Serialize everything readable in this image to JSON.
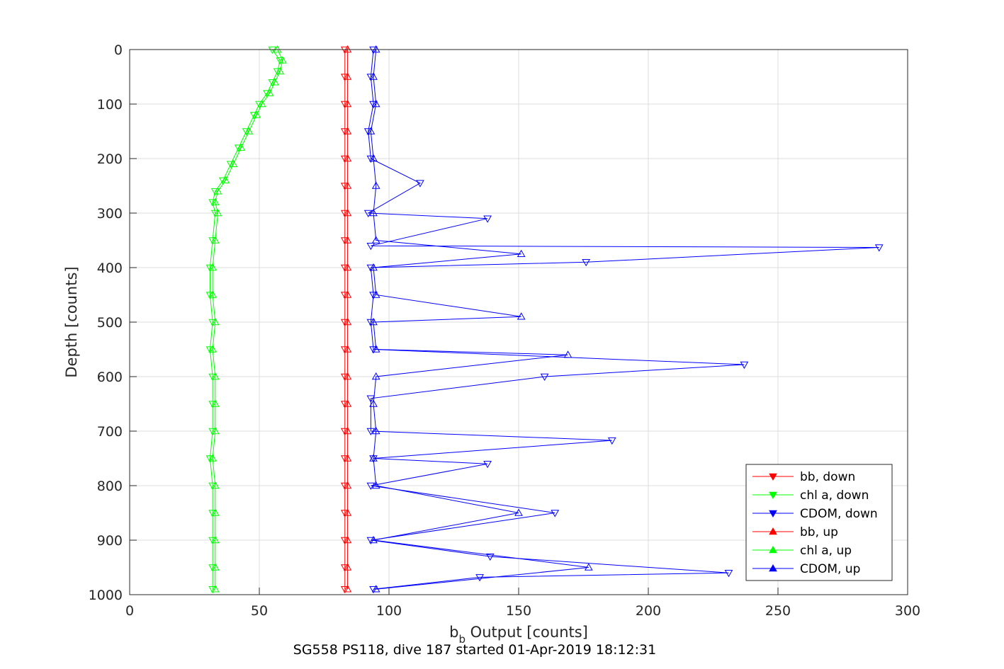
{
  "chart_data": {
    "type": "line",
    "xlabel_main": "b",
    "xlabel_sub": "b",
    "xlabel_rest": " Output [counts]",
    "ylabel": "Depth [counts]",
    "caption": "SG558 PS118, dive 187 started 01-Apr-2019 18:12:31",
    "xlim": [
      0,
      300
    ],
    "ylim": [
      0,
      1000
    ],
    "y_reversed": true,
    "grid": true,
    "x_ticks": [
      0,
      50,
      100,
      150,
      200,
      250,
      300
    ],
    "y_ticks": [
      0,
      100,
      200,
      300,
      400,
      500,
      600,
      700,
      800,
      900,
      1000
    ],
    "legend_position": "bottom-right",
    "legend": [
      {
        "label": "bb, down",
        "color": "#ff0000",
        "marker": "down-triangle"
      },
      {
        "label": "chl a, down",
        "color": "#00ff00",
        "marker": "down-triangle"
      },
      {
        "label": "CDOM, down",
        "color": "#0000ff",
        "marker": "down-triangle"
      },
      {
        "label": "bb, up",
        "color": "#ff0000",
        "marker": "up-triangle"
      },
      {
        "label": "chl a, up",
        "color": "#00ff00",
        "marker": "up-triangle"
      },
      {
        "label": "CDOM, up",
        "color": "#0000ff",
        "marker": "up-triangle"
      }
    ],
    "series": [
      {
        "name": "chl a, down",
        "color": "#00ff00",
        "marker": "down",
        "depth": [
          0,
          20,
          40,
          60,
          80,
          100,
          120,
          150,
          180,
          210,
          240,
          260,
          280,
          300,
          350,
          400,
          450,
          500,
          550,
          600,
          650,
          700,
          750,
          800,
          850,
          900,
          950,
          990
        ],
        "value": [
          55,
          58,
          57,
          55,
          53,
          50,
          48,
          45,
          42,
          39,
          36,
          33,
          32,
          33,
          32,
          31,
          31,
          32,
          31,
          32,
          32,
          32,
          31,
          32,
          32,
          32,
          32,
          32
        ]
      },
      {
        "name": "chl a, up",
        "color": "#00ff00",
        "marker": "up",
        "depth": [
          0,
          20,
          40,
          60,
          80,
          100,
          120,
          150,
          180,
          210,
          240,
          260,
          280,
          300,
          350,
          400,
          450,
          500,
          550,
          600,
          650,
          700,
          750,
          800,
          850,
          900,
          950,
          990
        ],
        "value": [
          57,
          59,
          58,
          56,
          54,
          51,
          49,
          46,
          43,
          40,
          37,
          34,
          33,
          34,
          33,
          32,
          32,
          33,
          32,
          33,
          33,
          33,
          32,
          33,
          33,
          33,
          33,
          33
        ]
      },
      {
        "name": "bb, down",
        "color": "#ff0000",
        "marker": "down",
        "depth": [
          0,
          50,
          100,
          150,
          200,
          250,
          300,
          350,
          400,
          450,
          500,
          550,
          600,
          650,
          700,
          750,
          800,
          850,
          900,
          950,
          990
        ],
        "value": [
          83,
          83,
          83,
          83,
          83,
          83,
          83,
          83,
          83,
          83,
          83,
          83,
          83,
          83,
          83,
          83,
          83,
          83,
          83,
          83,
          83
        ]
      },
      {
        "name": "bb, up",
        "color": "#ff0000",
        "marker": "up",
        "depth": [
          0,
          50,
          100,
          150,
          200,
          250,
          300,
          350,
          400,
          450,
          500,
          550,
          600,
          650,
          700,
          750,
          800,
          850,
          900,
          950,
          990
        ],
        "value": [
          84,
          84,
          84,
          84,
          84,
          84,
          84,
          84,
          84,
          84,
          84,
          84,
          84,
          84,
          84,
          84,
          84,
          84,
          84,
          84,
          84
        ]
      },
      {
        "name": "CDOM, down",
        "color": "#0000ff",
        "marker": "down",
        "depth": [
          0,
          50,
          100,
          150,
          200,
          245,
          300,
          310,
          360,
          363,
          390,
          400,
          450,
          500,
          550,
          578,
          600,
          640,
          700,
          717,
          750,
          760,
          800,
          850,
          900,
          930,
          960,
          968,
          990
        ],
        "value": [
          94,
          93,
          94,
          92,
          93,
          112,
          92,
          138,
          93,
          289,
          176,
          93,
          94,
          93,
          94,
          237,
          160,
          93,
          93,
          186,
          94,
          138,
          93,
          164,
          93,
          139,
          231,
          135,
          94
        ]
      },
      {
        "name": "CDOM, up",
        "color": "#0000ff",
        "marker": "up",
        "depth": [
          0,
          50,
          100,
          150,
          200,
          250,
          300,
          350,
          375,
          400,
          450,
          490,
          500,
          550,
          560,
          600,
          650,
          700,
          750,
          800,
          850,
          900,
          950,
          990
        ],
        "value": [
          95,
          94,
          95,
          93,
          94,
          95,
          94,
          95,
          151,
          94,
          95,
          151,
          94,
          95,
          169,
          95,
          94,
          95,
          94,
          95,
          150,
          94,
          177,
          95
        ]
      }
    ]
  }
}
